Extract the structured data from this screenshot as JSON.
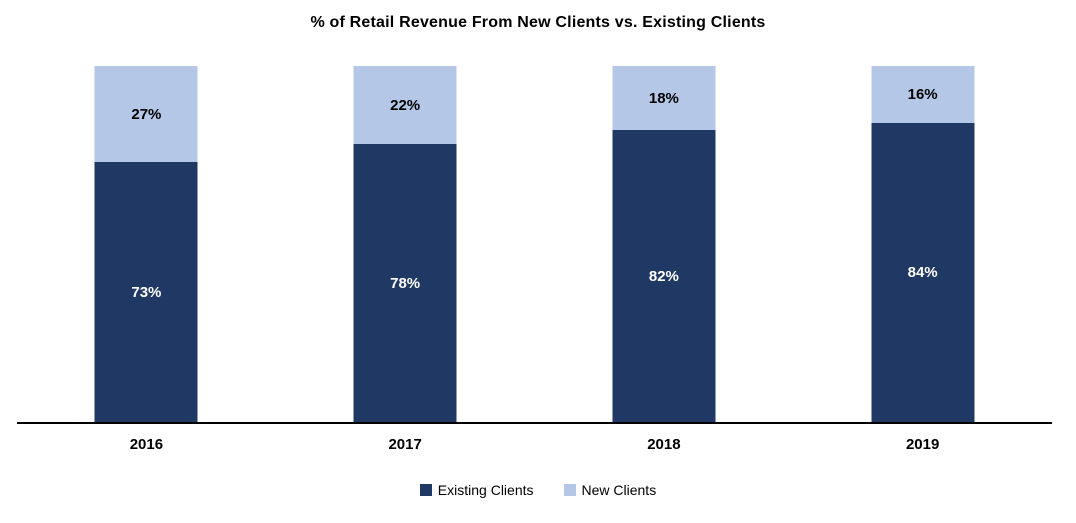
{
  "chart_data": {
    "type": "bar",
    "stacked": true,
    "title": "% of Retail Revenue From New Clients vs. Existing Clients",
    "categories": [
      "2016",
      "2017",
      "2018",
      "2019"
    ],
    "series": [
      {
        "name": "Existing Clients",
        "values": [
          73,
          78,
          82,
          84
        ],
        "color": "#1F3864",
        "label_color": "#FFFFFF"
      },
      {
        "name": "New Clients",
        "values": [
          27,
          22,
          18,
          16
        ],
        "color": "#B4C7E7",
        "label_color": "#000000"
      }
    ],
    "xlabel": "",
    "ylabel": "",
    "ylim": [
      0,
      100
    ],
    "value_suffix": "%",
    "grid": false,
    "legend_position": "bottom",
    "axis_line_color": "#000000",
    "background": "#FFFFFF"
  }
}
